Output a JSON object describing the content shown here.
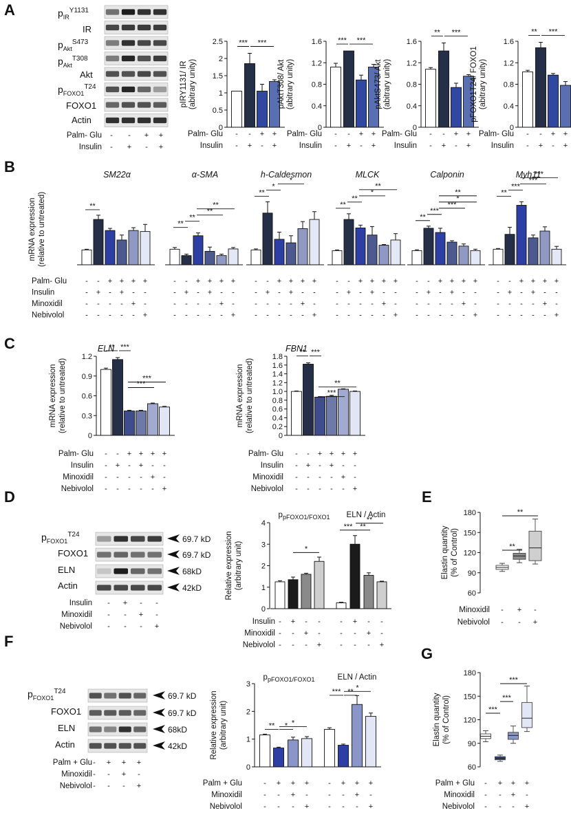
{
  "panels": {
    "A": {
      "letter": "A",
      "blot_labels": [
        "pIRY1131",
        "IR",
        "pAktS473",
        "pAktT308",
        "Akt",
        "pFOXO1T24",
        "FOXO1",
        "Actin"
      ],
      "row_labels": [
        "Palm- Glu",
        "Insulin"
      ],
      "signs": [
        [
          "-",
          "-",
          "+",
          "+"
        ],
        [
          "-",
          "+",
          "-",
          "+"
        ]
      ]
    },
    "B": {
      "letter": "B",
      "row_labels": [
        "Palm- Glu",
        "Insulin",
        "Minoxidil",
        "Nebivolol"
      ],
      "signs": [
        [
          "-",
          "-",
          "+",
          "+",
          "+",
          "+"
        ],
        [
          "-",
          "+",
          "-",
          "+",
          "-",
          "-"
        ],
        [
          "-",
          "-",
          "-",
          "-",
          "+",
          "-"
        ],
        [
          "-",
          "-",
          "-",
          "-",
          "-",
          "+"
        ]
      ],
      "ylabel": [
        "mRNA expression",
        "(relative  to untreated)"
      ]
    },
    "C": {
      "letter": "C",
      "row_labels": [
        "Palm- Glu",
        "Insulin",
        "Minoxidil",
        "Nebivolol"
      ],
      "signs": [
        [
          "-",
          "-",
          "+",
          "+",
          "+",
          "+"
        ],
        [
          "-",
          "+",
          "-",
          "+",
          "-",
          "-"
        ],
        [
          "-",
          "-",
          "-",
          "-",
          "+",
          "-"
        ],
        [
          "-",
          "-",
          "-",
          "-",
          "-",
          "+"
        ]
      ],
      "ylabel": [
        "mRNA expression",
        "(relative  to untreated)"
      ]
    },
    "D": {
      "letter": "D",
      "blot_labels": [
        "pFOXO1T24",
        "FOXO1",
        "ELN",
        "Actin"
      ],
      "kd": [
        "69.7 kD",
        "69.7 kD",
        "68kD",
        "42kD"
      ],
      "row_labels": [
        "Insulin",
        "Minoxidil",
        "Nebivolol"
      ],
      "signs": [
        [
          "-",
          "+",
          "-",
          "-"
        ],
        [
          "-",
          "-",
          "+",
          "-"
        ],
        [
          "-",
          "-",
          "-",
          "+"
        ]
      ],
      "ylabel": [
        "Relative expression",
        "(arbitrary unit)"
      ]
    },
    "E": {
      "letter": "E",
      "row_labels": [
        "Minoxidil",
        "Nebivolol"
      ],
      "signs": [
        [
          "-",
          "+",
          "-"
        ],
        [
          "-",
          "-",
          "+"
        ]
      ],
      "ylabel": [
        "Elastin quantity",
        "(% of Control)"
      ]
    },
    "F": {
      "letter": "F",
      "blot_labels": [
        "pFOXO1T24",
        "FOXO1",
        "ELN",
        "Actin"
      ],
      "kd": [
        "69.7 kD",
        "69.7 kD",
        "68kD",
        "42kD"
      ],
      "row_labels": [
        "Palm + Glu",
        "Minoxidil",
        "Nebivolol"
      ],
      "signs": [
        [
          "-",
          "+",
          "+",
          "+"
        ],
        [
          "-",
          "-",
          "+",
          "-"
        ],
        [
          "-",
          "-",
          "-",
          "+"
        ]
      ],
      "ylabel": [
        "Relative expression",
        "(arbitrary unit)"
      ]
    },
    "G": {
      "letter": "G",
      "row_labels": [
        "Palm + Glu",
        "Minoxidil",
        "Nebivolol"
      ],
      "signs": [
        [
          "-",
          "+",
          "+",
          "+"
        ],
        [
          "-",
          "-",
          "+",
          "-"
        ],
        [
          "-",
          "-",
          "-",
          "+"
        ]
      ],
      "ylabel": [
        "Elastin quantity",
        "(% of Control)"
      ]
    }
  },
  "chart_data": [
    {
      "id": "A1",
      "type": "bar",
      "ylabel": [
        "pIRY1131/ IR",
        "(abitrary unity)"
      ],
      "ylim": [
        0,
        2.5
      ],
      "ticks": [
        "0",
        "0.5",
        "1",
        "1.5",
        "2",
        "2.5"
      ],
      "values": [
        1.05,
        1.85,
        1.05,
        1.33
      ],
      "errors": [
        0,
        0.3,
        0.2,
        0.05
      ],
      "colors": [
        "#ffffff",
        "#252f48",
        "#3048a0",
        "#5a6fb2"
      ],
      "row_labels": [
        "Palm- Glu",
        "Insulin"
      ],
      "signs": [
        [
          "-",
          "-",
          "+",
          "+"
        ],
        [
          "-",
          "+",
          "-",
          "+"
        ]
      ],
      "sig": [
        [
          "***",
          "***"
        ]
      ]
    },
    {
      "id": "A2",
      "type": "bar",
      "ylabel": [
        "pAktT308/ Akt",
        "(abitrary unity)"
      ],
      "ylim": [
        0,
        1.6
      ],
      "ticks": [
        "0",
        "0.4",
        "0.8",
        "1.2",
        "1.6"
      ],
      "values": [
        1.12,
        1.42,
        0.88,
        1.12
      ],
      "errors": [
        0.07,
        0,
        0.09,
        0.05
      ],
      "colors": [
        "#ffffff",
        "#252f48",
        "#3048a0",
        "#5a6fb2"
      ],
      "row_labels": [
        "Palm- Glu",
        "Insulin"
      ],
      "signs": [
        [
          "-",
          "-",
          "+",
          "+"
        ],
        [
          "-",
          "+",
          "-",
          "+"
        ]
      ],
      "sig": [
        [
          "***",
          "***"
        ]
      ]
    },
    {
      "id": "A3",
      "type": "bar",
      "ylabel": [
        "pAktS473/ Akt",
        "(abitrary unity)"
      ],
      "ylim": [
        0,
        1.6
      ],
      "ticks": [
        "0",
        "0.4",
        "0.8",
        "1.2",
        "1.6"
      ],
      "values": [
        1.08,
        1.42,
        0.74,
        0.95
      ],
      "errors": [
        0.03,
        0.15,
        0.08,
        0.03
      ],
      "colors": [
        "#ffffff",
        "#252f48",
        "#3048a0",
        "#5a6fb2"
      ],
      "row_labels": [
        "Palm- Glu",
        "Insulin"
      ],
      "signs": [
        [
          "-",
          "-",
          "+",
          "+"
        ],
        [
          "-",
          "+",
          "-",
          "+"
        ]
      ],
      "sig": [
        [
          "**",
          "***"
        ]
      ]
    },
    {
      "id": "A4",
      "type": "bar",
      "ylabel": [
        "pFOXO1T24/ FOXO1",
        "(abitrary unity)"
      ],
      "ylim": [
        0,
        1.6
      ],
      "ticks": [
        "0",
        "0.4",
        "0.8",
        "1.2",
        "1.6"
      ],
      "values": [
        1.03,
        1.48,
        0.97,
        0.78
      ],
      "errors": [
        0.03,
        0.1,
        0.03,
        0.07
      ],
      "colors": [
        "#ffffff",
        "#252f48",
        "#3048a0",
        "#5a6fb2"
      ],
      "row_labels": [
        "Palm- Glu",
        "Insulin"
      ],
      "signs": [
        [
          "-",
          "-",
          "+",
          "+"
        ],
        [
          "-",
          "+",
          "-",
          "+"
        ]
      ],
      "sig": [
        [
          "**",
          "***"
        ]
      ]
    },
    {
      "id": "B",
      "type": "bar",
      "ylabel": [
        "mRNA expression",
        "(relative  to untreated)"
      ],
      "ylim": [
        0,
        5
      ],
      "genes": [
        {
          "name": "SM22α",
          "values": [
            1.05,
            3.2,
            2.42,
            1.75,
            2.42,
            2.35
          ],
          "errors": [
            0.05,
            0.3,
            0.15,
            0.35,
            0.2,
            0.5
          ],
          "sig": [
            "**"
          ]
        },
        {
          "name": "α-SMA",
          "values": [
            1.1,
            0.65,
            2.05,
            0.95,
            0.65,
            1.12
          ],
          "errors": [
            0.12,
            0.1,
            0.2,
            0.3,
            0.1,
            0.1
          ],
          "sig": [
            "**",
            "**",
            "**",
            "**"
          ]
        },
        {
          "name": "h-Caldesmon",
          "values": [
            1.05,
            3.65,
            1.8,
            1.55,
            2.55,
            3.2
          ],
          "errors": [
            0.07,
            0.8,
            0.5,
            0.5,
            0.5,
            0.55
          ],
          "sig": [
            "**",
            "*",
            "*"
          ]
        },
        {
          "name": "MLCK",
          "values": [
            1.0,
            3.2,
            2.6,
            2.1,
            1.38,
            1.75
          ],
          "errors": [
            0.05,
            0.4,
            0.2,
            0.6,
            0.05,
            0.45
          ],
          "sig": [
            "**",
            "**",
            "*",
            "**"
          ]
        },
        {
          "name": "Calponin",
          "values": [
            1.0,
            2.58,
            2.28,
            1.6,
            1.32,
            1.0
          ],
          "errors": [
            0.06,
            0.15,
            0.3,
            0.1,
            0.15,
            0.1
          ],
          "sig": [
            "**",
            "***",
            "***",
            "*",
            "**"
          ]
        },
        {
          "name": "Myh11",
          "values": [
            1.1,
            2.15,
            4.2,
            1.9,
            2.38,
            1.1
          ],
          "errors": [
            0.05,
            0.5,
            0.25,
            0.2,
            0.3,
            0.2
          ],
          "sig": [
            "**",
            "***",
            "***",
            "***"
          ]
        }
      ],
      "colors": [
        "#ffffff",
        "#252f48",
        "#2d3fa5",
        "#4d5a90",
        "#8f99c3",
        "#e4e7f5"
      ]
    },
    {
      "id": "C1",
      "type": "bar",
      "title": "ELN",
      "ylabel": [
        "mRNA expression",
        "(relative  to untreated)"
      ],
      "ylim": [
        0,
        1.2
      ],
      "ticks": [
        "0",
        "0.3",
        "0.6",
        "0.9",
        "1.2"
      ],
      "values": [
        1.0,
        1.15,
        0.37,
        0.37,
        0.48,
        0.43
      ],
      "errors": [
        0.02,
        0.03,
        0.01,
        0.01,
        0.01,
        0.01
      ],
      "colors": [
        "#ffffff",
        "#252f48",
        "#3f4c8e",
        "#6e79a8",
        "#a3aad0",
        "#e2e5f4"
      ],
      "sig": [
        "**",
        "***",
        "***",
        "***"
      ]
    },
    {
      "id": "C2",
      "type": "bar",
      "title": "FBN1",
      "ylabel": [
        "mRNA expression",
        "(relative  to untreated)"
      ],
      "ylim": [
        0,
        1.8
      ],
      "ticks": [
        "0",
        "0.2",
        "0.4",
        "0.6",
        "0.8",
        "1.0",
        "1.2",
        "1.4",
        "1.6",
        "1.8"
      ],
      "values": [
        1.0,
        1.62,
        0.87,
        0.89,
        1.05,
        1.0
      ],
      "errors": [
        0.01,
        0.03,
        0.01,
        0.02,
        0.01,
        0.01
      ],
      "colors": [
        "#ffffff",
        "#252f48",
        "#3f4c8e",
        "#6e79a8",
        "#a3aad0",
        "#e2e5f4"
      ],
      "sig": [
        "**",
        "***",
        "***",
        "**"
      ]
    },
    {
      "id": "D",
      "type": "bar",
      "ylabel": [
        "Relative expression",
        "(arbitrary unit)"
      ],
      "ylim": [
        0,
        4
      ],
      "ticks": [
        "0",
        "1",
        "2",
        "3",
        "4"
      ],
      "groups": [
        {
          "title": "pFOXO1/FOXO1",
          "values": [
            1.25,
            1.35,
            1.6,
            2.2
          ],
          "errors": [
            0.05,
            0.12,
            0.05,
            0.2
          ],
          "sig": [
            "*"
          ]
        },
        {
          "title": "ELN / Actin",
          "values": [
            0.27,
            3.0,
            1.55,
            1.25
          ],
          "errors": [
            0.03,
            0.4,
            0.12,
            0.03
          ],
          "sig": [
            "***",
            "**",
            "**"
          ]
        }
      ],
      "colors": [
        "#ffffff",
        "#1b1b1b",
        "#8a8a8a",
        "#cfcfcf"
      ],
      "row_labels": [
        "Insulin",
        "Minoxidil",
        "Nebivolol"
      ],
      "signs": [
        [
          "-",
          "+",
          "-",
          "-",
          "-",
          "+",
          "-",
          "-"
        ],
        [
          "-",
          "-",
          "+",
          "-",
          "-",
          "-",
          "+",
          "-"
        ],
        [
          "-",
          "-",
          "-",
          "+",
          "-",
          "-",
          "-",
          "+"
        ]
      ]
    },
    {
      "id": "E",
      "type": "box",
      "ylabel": [
        "Elastin quantity",
        "(% of Control)"
      ],
      "ylim": [
        60,
        180
      ],
      "ticks": [
        "60",
        "90",
        "120",
        "150",
        "180"
      ],
      "boxes": [
        {
          "min": 92,
          "q1": 95,
          "median": 98,
          "q3": 101,
          "max": 104,
          "color": "#ffffff"
        },
        {
          "min": 105,
          "q1": 110,
          "median": 115,
          "q3": 119,
          "max": 125,
          "color": "#8c8c8c"
        },
        {
          "min": 103,
          "q1": 108,
          "median": 127,
          "q3": 152,
          "max": 170,
          "color": "#cfcfcf"
        }
      ],
      "sig": [
        "**",
        "**"
      ]
    },
    {
      "id": "F",
      "type": "bar",
      "ylabel": [
        "Relative expression",
        "(arbitrary unit)"
      ],
      "ylim": [
        0,
        3
      ],
      "ticks": [
        "0",
        "1",
        "2",
        "3"
      ],
      "groups": [
        {
          "title": "pFOXO1/FOXO1",
          "values": [
            1.15,
            0.68,
            0.97,
            1.02
          ],
          "errors": [
            0.03,
            0.03,
            0.1,
            0.07
          ],
          "sig": [
            "**",
            "*",
            "*"
          ]
        },
        {
          "title": "ELN / Actin",
          "values": [
            1.35,
            0.78,
            2.25,
            1.82
          ],
          "errors": [
            0.06,
            0.04,
            0.32,
            0.12
          ],
          "sig": [
            "***",
            "**",
            "*"
          ]
        }
      ],
      "colors": [
        "#ffffff",
        "#2d3fa5",
        "#8a96c8",
        "#e3e6f4"
      ],
      "row_labels": [
        "Palm + Glu",
        "Minoxidil",
        "Nebivolol"
      ],
      "signs": [
        [
          "-",
          "+",
          "+",
          "+",
          "-",
          "+",
          "+",
          "+"
        ],
        [
          "-",
          "-",
          "+",
          "-",
          "-",
          "-",
          "+",
          "-"
        ],
        [
          "-",
          "-",
          "-",
          "+",
          "-",
          "-",
          "-",
          "+"
        ]
      ]
    },
    {
      "id": "G",
      "type": "box",
      "ylabel": [
        "Elastin quantity",
        "(% of Control)"
      ],
      "ylim": [
        60,
        180
      ],
      "ticks": [
        "60",
        "90",
        "120",
        "150",
        "180"
      ],
      "boxes": [
        {
          "min": 92,
          "q1": 96,
          "median": 99,
          "q3": 102,
          "max": 106,
          "color": "#ffffff"
        },
        {
          "min": 67,
          "q1": 69,
          "median": 71,
          "q3": 73,
          "max": 75,
          "color": "#2d3fa5"
        },
        {
          "min": 90,
          "q1": 95,
          "median": 100,
          "q3": 104,
          "max": 112,
          "color": "#8a96c8"
        },
        {
          "min": 105,
          "q1": 110,
          "median": 122,
          "q3": 142,
          "max": 163,
          "color": "#e3e6f4"
        }
      ],
      "sig": [
        "***",
        "***",
        "***"
      ]
    }
  ]
}
